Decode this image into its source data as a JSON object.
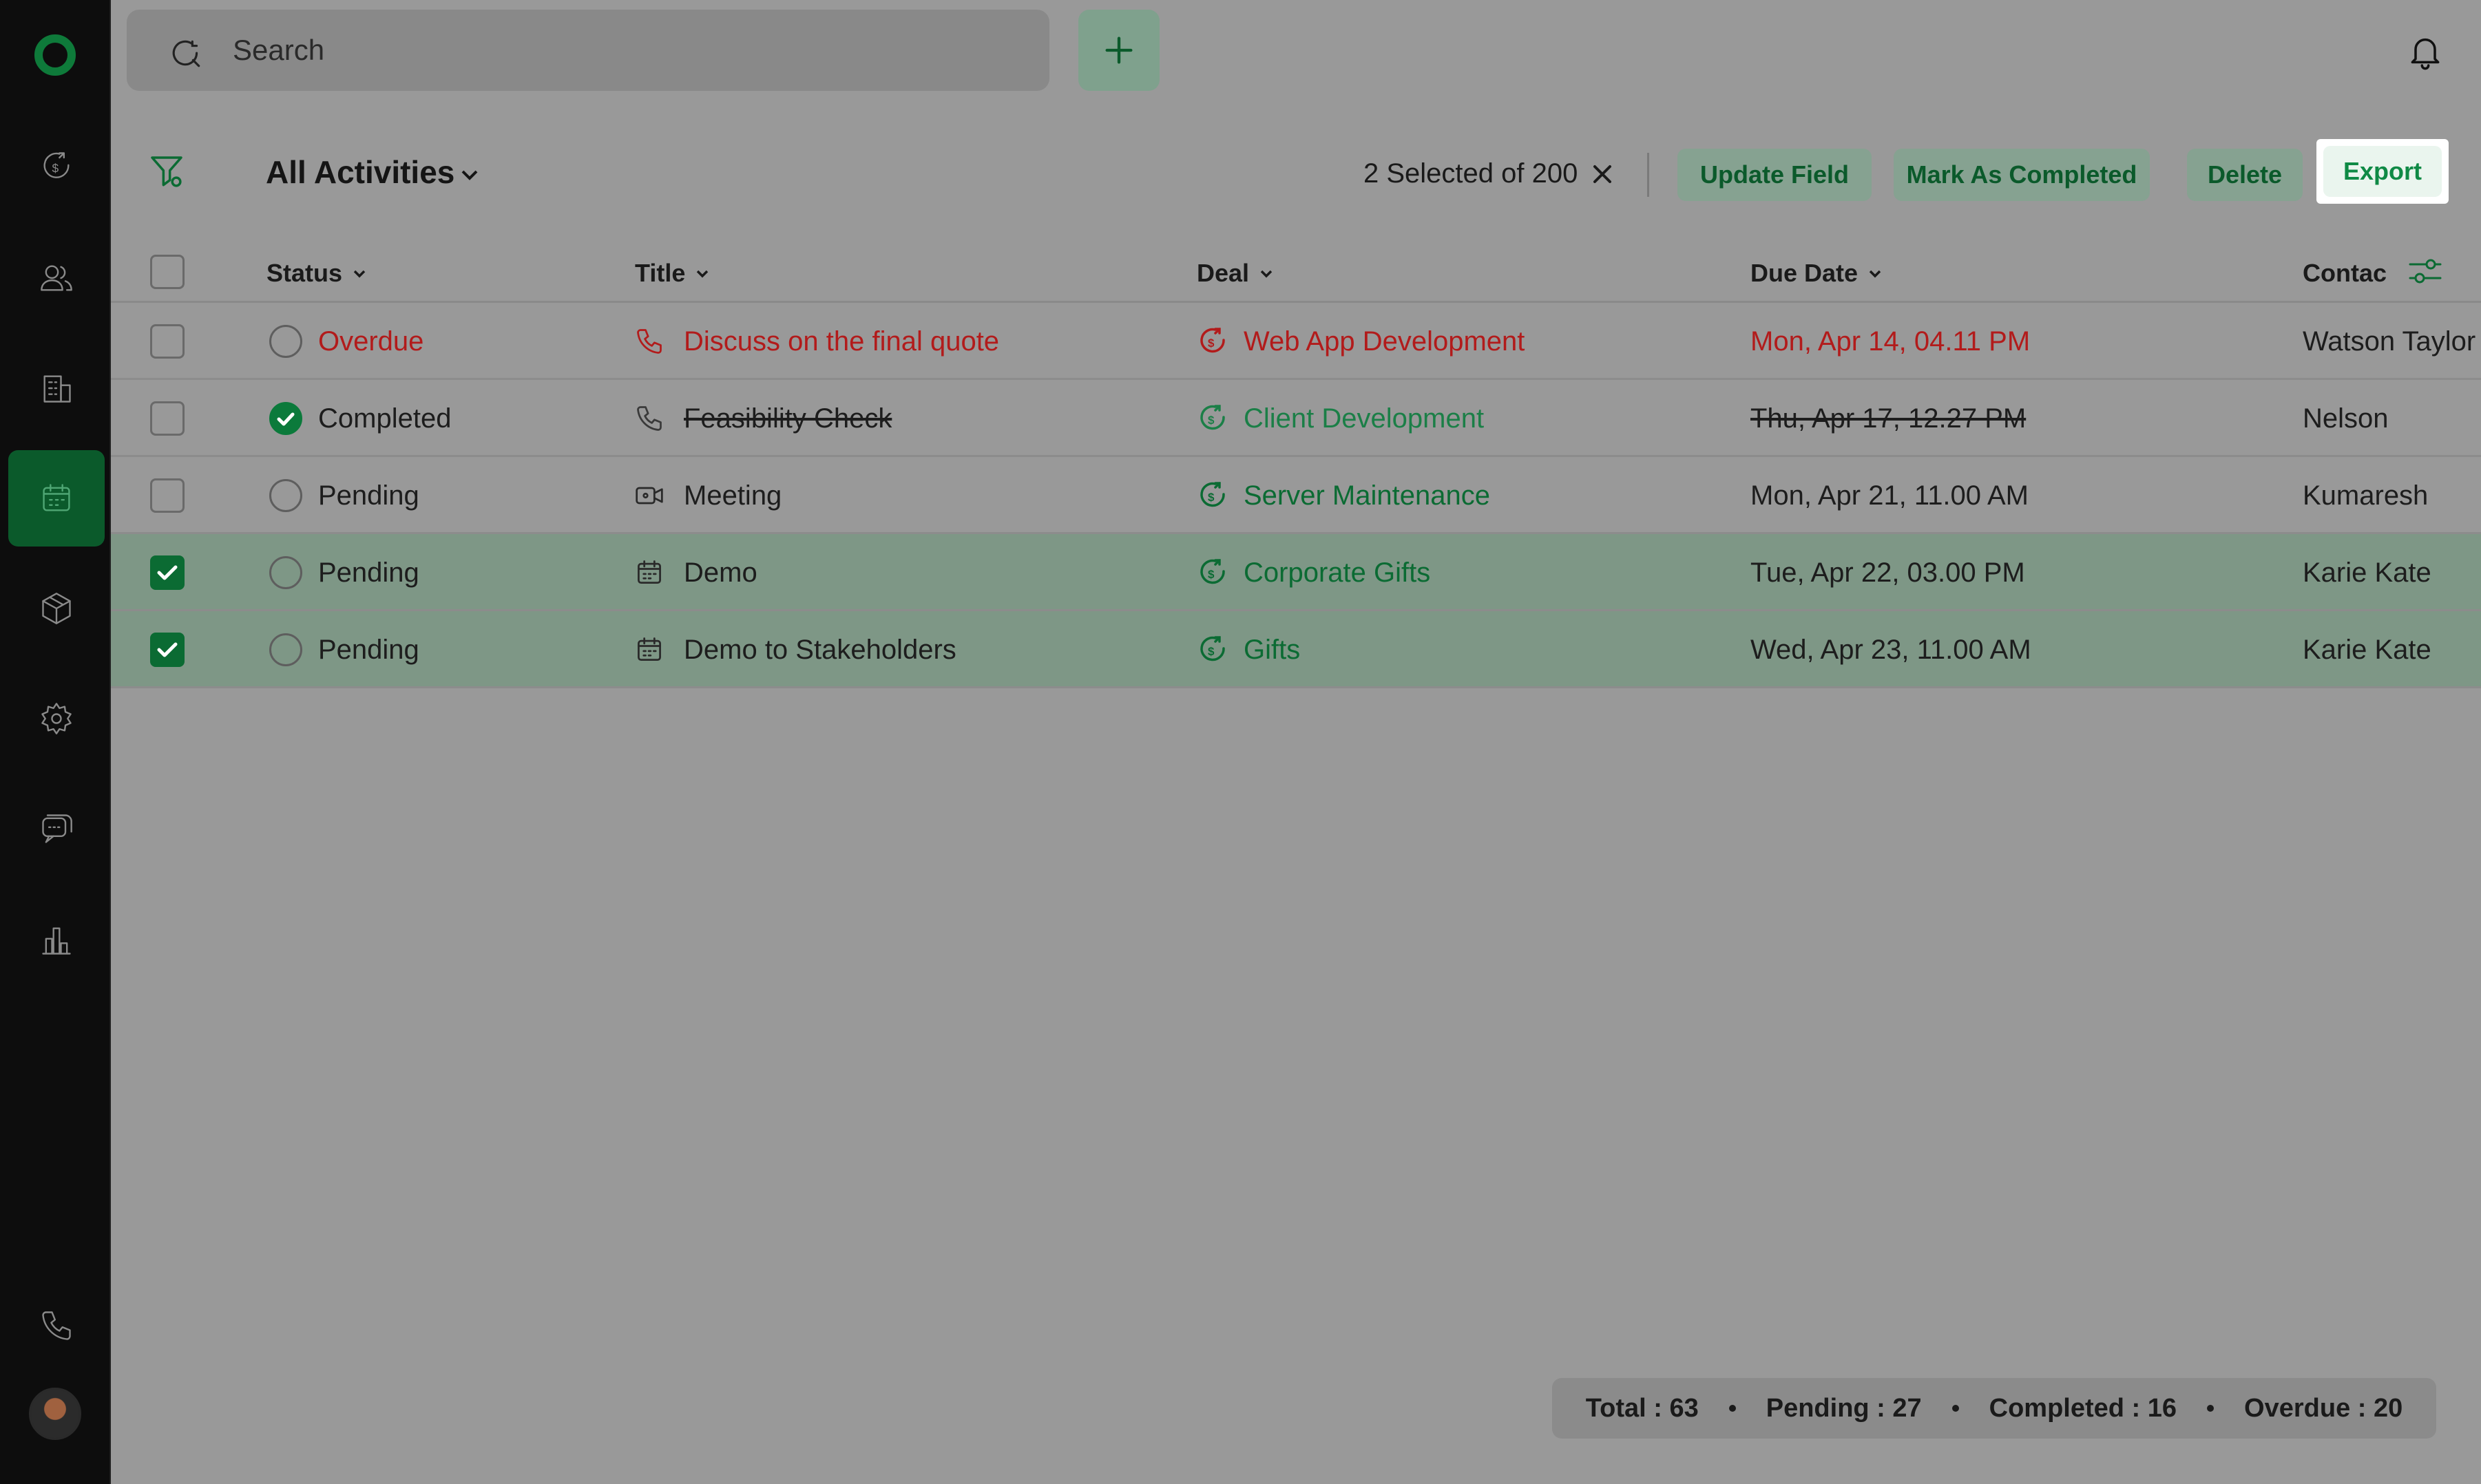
{
  "search": {
    "placeholder": "Search"
  },
  "toolbar": {
    "view_title": "All Activities",
    "selected_text": "2 Selected of 200",
    "update_field": "Update Field",
    "mark_completed": "Mark As Completed",
    "delete": "Delete",
    "export": "Export"
  },
  "table": {
    "headers": {
      "status": "Status",
      "title": "Title",
      "deal": "Deal",
      "due_date": "Due Date",
      "contact": "Contac"
    },
    "rows": [
      {
        "status": "Overdue",
        "title": "Discuss on the final quote",
        "deal": "Web App Development",
        "due": "Mon, Apr 14, 04.11 PM",
        "contact": "Watson Taylor",
        "type_icon": "phone-icon",
        "checked": false
      },
      {
        "status": "Completed",
        "title": "Feasibility Check",
        "deal": "Client Development",
        "due": "Thu, Apr 17, 12.27 PM",
        "contact": "Nelson",
        "type_icon": "phone-icon",
        "checked": false
      },
      {
        "status": "Pending",
        "title": "Meeting",
        "deal": "Server Maintenance",
        "due": "Mon, Apr 21, 11.00 AM",
        "contact": "Kumaresh",
        "type_icon": "video-icon",
        "checked": false
      },
      {
        "status": "Pending",
        "title": "Demo",
        "deal": "Corporate Gifts",
        "due": "Tue, Apr 22, 03.00 PM",
        "contact": "Karie Kate",
        "type_icon": "calendar-icon",
        "checked": true
      },
      {
        "status": "Pending",
        "title": "Demo to Stakeholders",
        "deal": "Gifts",
        "due": "Wed, Apr 23, 11.00 AM",
        "contact": "Karie Kate",
        "type_icon": "calendar-icon",
        "checked": true
      }
    ]
  },
  "stats": {
    "total": "Total : 63",
    "pending": "Pending : 27",
    "completed": "Completed : 16",
    "overdue": "Overdue : 20"
  },
  "colors": {
    "accent": "#0b6b33",
    "overdue": "#b21b1b",
    "selected_row": "#7e9786",
    "sidebar": "#0d0d0d"
  }
}
